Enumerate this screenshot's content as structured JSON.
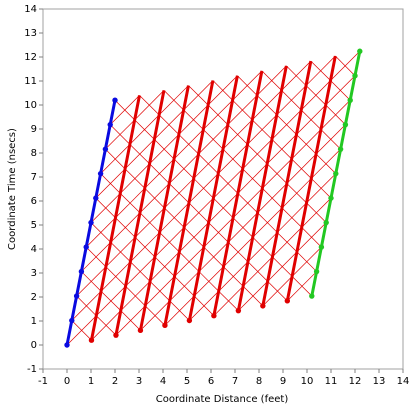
{
  "chart_data": {
    "type": "line",
    "xlabel": "Coordinate Distance (feet)",
    "ylabel": "Coordinate Time (nsecs)",
    "xlim": [
      -1,
      14
    ],
    "ylim": [
      -1,
      14
    ],
    "xticks": [
      -1,
      0,
      1,
      2,
      3,
      4,
      5,
      6,
      7,
      8,
      9,
      10,
      11,
      12,
      13,
      14
    ],
    "yticks": [
      -1,
      0,
      1,
      2,
      3,
      4,
      5,
      6,
      7,
      8,
      9,
      10,
      11,
      12,
      13,
      14
    ],
    "light_lines": true,
    "light_line_color": "#e00000",
    "series": [
      {
        "color": "#0a0ae0",
        "markers": "all",
        "x": [
          0,
          0.2,
          0.4,
          0.6,
          0.8,
          1,
          1.2,
          1.4,
          1.6,
          1.8,
          2
        ],
        "values": [
          0,
          1.02,
          2.04,
          3.06,
          4.08,
          5.1,
          6.12,
          7.14,
          8.16,
          9.18,
          10.2
        ]
      },
      {
        "color": "#e00000",
        "markers": "first",
        "x": [
          1.02,
          1.22,
          1.42,
          1.62,
          1.82,
          2.02,
          2.22,
          2.42,
          2.62,
          2.82,
          3.02
        ],
        "values": [
          0.2,
          1.22,
          2.24,
          3.26,
          4.28,
          5.3,
          6.32,
          7.34,
          8.36,
          9.38,
          10.4
        ]
      },
      {
        "color": "#e00000",
        "markers": "first",
        "x": [
          2.04,
          2.24,
          2.44,
          2.64,
          2.84,
          3.04,
          3.24,
          3.44,
          3.64,
          3.84,
          4.04
        ],
        "values": [
          0.41,
          1.43,
          2.45,
          3.47,
          4.49,
          5.51,
          6.53,
          7.55,
          8.57,
          9.59,
          10.61
        ]
      },
      {
        "color": "#e00000",
        "markers": "first",
        "x": [
          3.06,
          3.26,
          3.46,
          3.66,
          3.86,
          4.06,
          4.26,
          4.46,
          4.66,
          4.86,
          5.06
        ],
        "values": [
          0.61,
          1.63,
          2.65,
          3.67,
          4.69,
          5.71,
          6.73,
          7.75,
          8.77,
          9.79,
          10.81
        ]
      },
      {
        "color": "#e00000",
        "markers": "first",
        "x": [
          4.08,
          4.28,
          4.48,
          4.68,
          4.88,
          5.08,
          5.28,
          5.48,
          5.68,
          5.88,
          6.08
        ],
        "values": [
          0.82,
          1.84,
          2.86,
          3.88,
          4.9,
          5.92,
          6.94,
          7.96,
          8.98,
          10,
          11.02
        ]
      },
      {
        "color": "#e00000",
        "markers": "first",
        "x": [
          5.1,
          5.3,
          5.5,
          5.7,
          5.9,
          6.1,
          6.3,
          6.5,
          6.7,
          6.9,
          7.1
        ],
        "values": [
          1.02,
          2.04,
          3.06,
          4.08,
          5.1,
          6.12,
          7.14,
          8.16,
          9.18,
          10.2,
          11.22
        ]
      },
      {
        "color": "#e00000",
        "markers": "first",
        "x": [
          6.12,
          6.32,
          6.52,
          6.72,
          6.92,
          7.12,
          7.32,
          7.52,
          7.72,
          7.92,
          8.12
        ],
        "values": [
          1.22,
          2.24,
          3.26,
          4.28,
          5.3,
          6.32,
          7.34,
          8.36,
          9.38,
          10.4,
          11.42
        ]
      },
      {
        "color": "#e00000",
        "markers": "first",
        "x": [
          7.14,
          7.34,
          7.54,
          7.74,
          7.94,
          8.14,
          8.34,
          8.54,
          8.74,
          8.94,
          9.14
        ],
        "values": [
          1.43,
          2.45,
          3.47,
          4.49,
          5.51,
          6.53,
          7.55,
          8.57,
          9.59,
          10.61,
          11.63
        ]
      },
      {
        "color": "#e00000",
        "markers": "first",
        "x": [
          8.16,
          8.36,
          8.56,
          8.76,
          8.96,
          9.16,
          9.36,
          9.56,
          9.76,
          9.96,
          10.16
        ],
        "values": [
          1.63,
          2.65,
          3.67,
          4.69,
          5.71,
          6.73,
          7.75,
          8.77,
          9.79,
          10.81,
          11.83
        ]
      },
      {
        "color": "#e00000",
        "markers": "first",
        "x": [
          9.18,
          9.38,
          9.58,
          9.78,
          9.98,
          10.18,
          10.38,
          10.58,
          10.78,
          10.98,
          11.18
        ],
        "values": [
          1.84,
          2.86,
          3.88,
          4.9,
          5.92,
          6.94,
          7.96,
          8.98,
          10,
          11.02,
          12.04
        ]
      },
      {
        "color": "#22c822",
        "markers": "all",
        "x": [
          10.2,
          10.4,
          10.6,
          10.8,
          11,
          11.2,
          11.4,
          11.6,
          11.8,
          12,
          12.2
        ],
        "values": [
          2.04,
          3.06,
          4.08,
          5.1,
          6.12,
          7.14,
          8.16,
          9.18,
          10.2,
          11.22,
          12.24
        ]
      }
    ]
  }
}
